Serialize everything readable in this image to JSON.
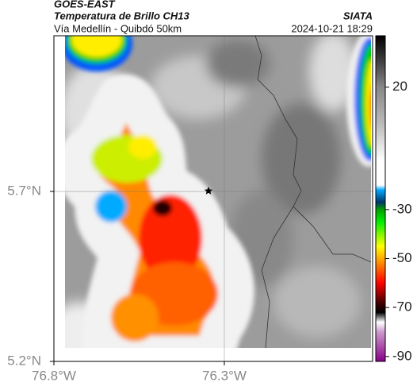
{
  "header": {
    "source": "GOES-EAST",
    "title": "Temperatura de Brillo CH13",
    "subtitle": "Vía Medellín - Quibdó 50km",
    "brand": "SIATA",
    "datetime": "2024-10-21 18:29"
  },
  "map": {
    "xlim": [
      -76.8,
      -75.865
    ],
    "ylim": [
      5.2,
      6.158
    ],
    "grid": true,
    "xticks": [
      {
        "value": -76.8,
        "label": "76.8°W"
      },
      {
        "value": -76.3,
        "label": "76.3°W"
      }
    ],
    "yticks": [
      {
        "value": 5.2,
        "label": "5.2°N"
      },
      {
        "value": 5.7,
        "label": "5.7°N"
      }
    ]
  },
  "colorbar": {
    "lim": [
      -92,
      41
    ],
    "ticks": [
      20,
      -30,
      -50,
      -70,
      -90
    ],
    "colormap": [
      {
        "value": 41,
        "color": "#000000"
      },
      {
        "value": 30,
        "color": "#444444"
      },
      {
        "value": 20,
        "color": "#888888"
      },
      {
        "value": 5,
        "color": "#bbbbbb"
      },
      {
        "value": -10,
        "color": "#ffffff"
      },
      {
        "value": -20,
        "color": "#ffffff"
      },
      {
        "value": -22,
        "color": "#00aaff"
      },
      {
        "value": -27,
        "color": "#003366"
      },
      {
        "value": -30,
        "color": "#00a000"
      },
      {
        "value": -35,
        "color": "#00ee00"
      },
      {
        "value": -45,
        "color": "#ffff00"
      },
      {
        "value": -52,
        "color": "#ff8800"
      },
      {
        "value": -60,
        "color": "#ff0000"
      },
      {
        "value": -68,
        "color": "#440000"
      },
      {
        "value": -72,
        "color": "#000000"
      },
      {
        "value": -76,
        "color": "#ffffff"
      },
      {
        "value": -80,
        "color": "#cc99cc"
      },
      {
        "value": -92,
        "color": "#880088"
      }
    ]
  }
}
